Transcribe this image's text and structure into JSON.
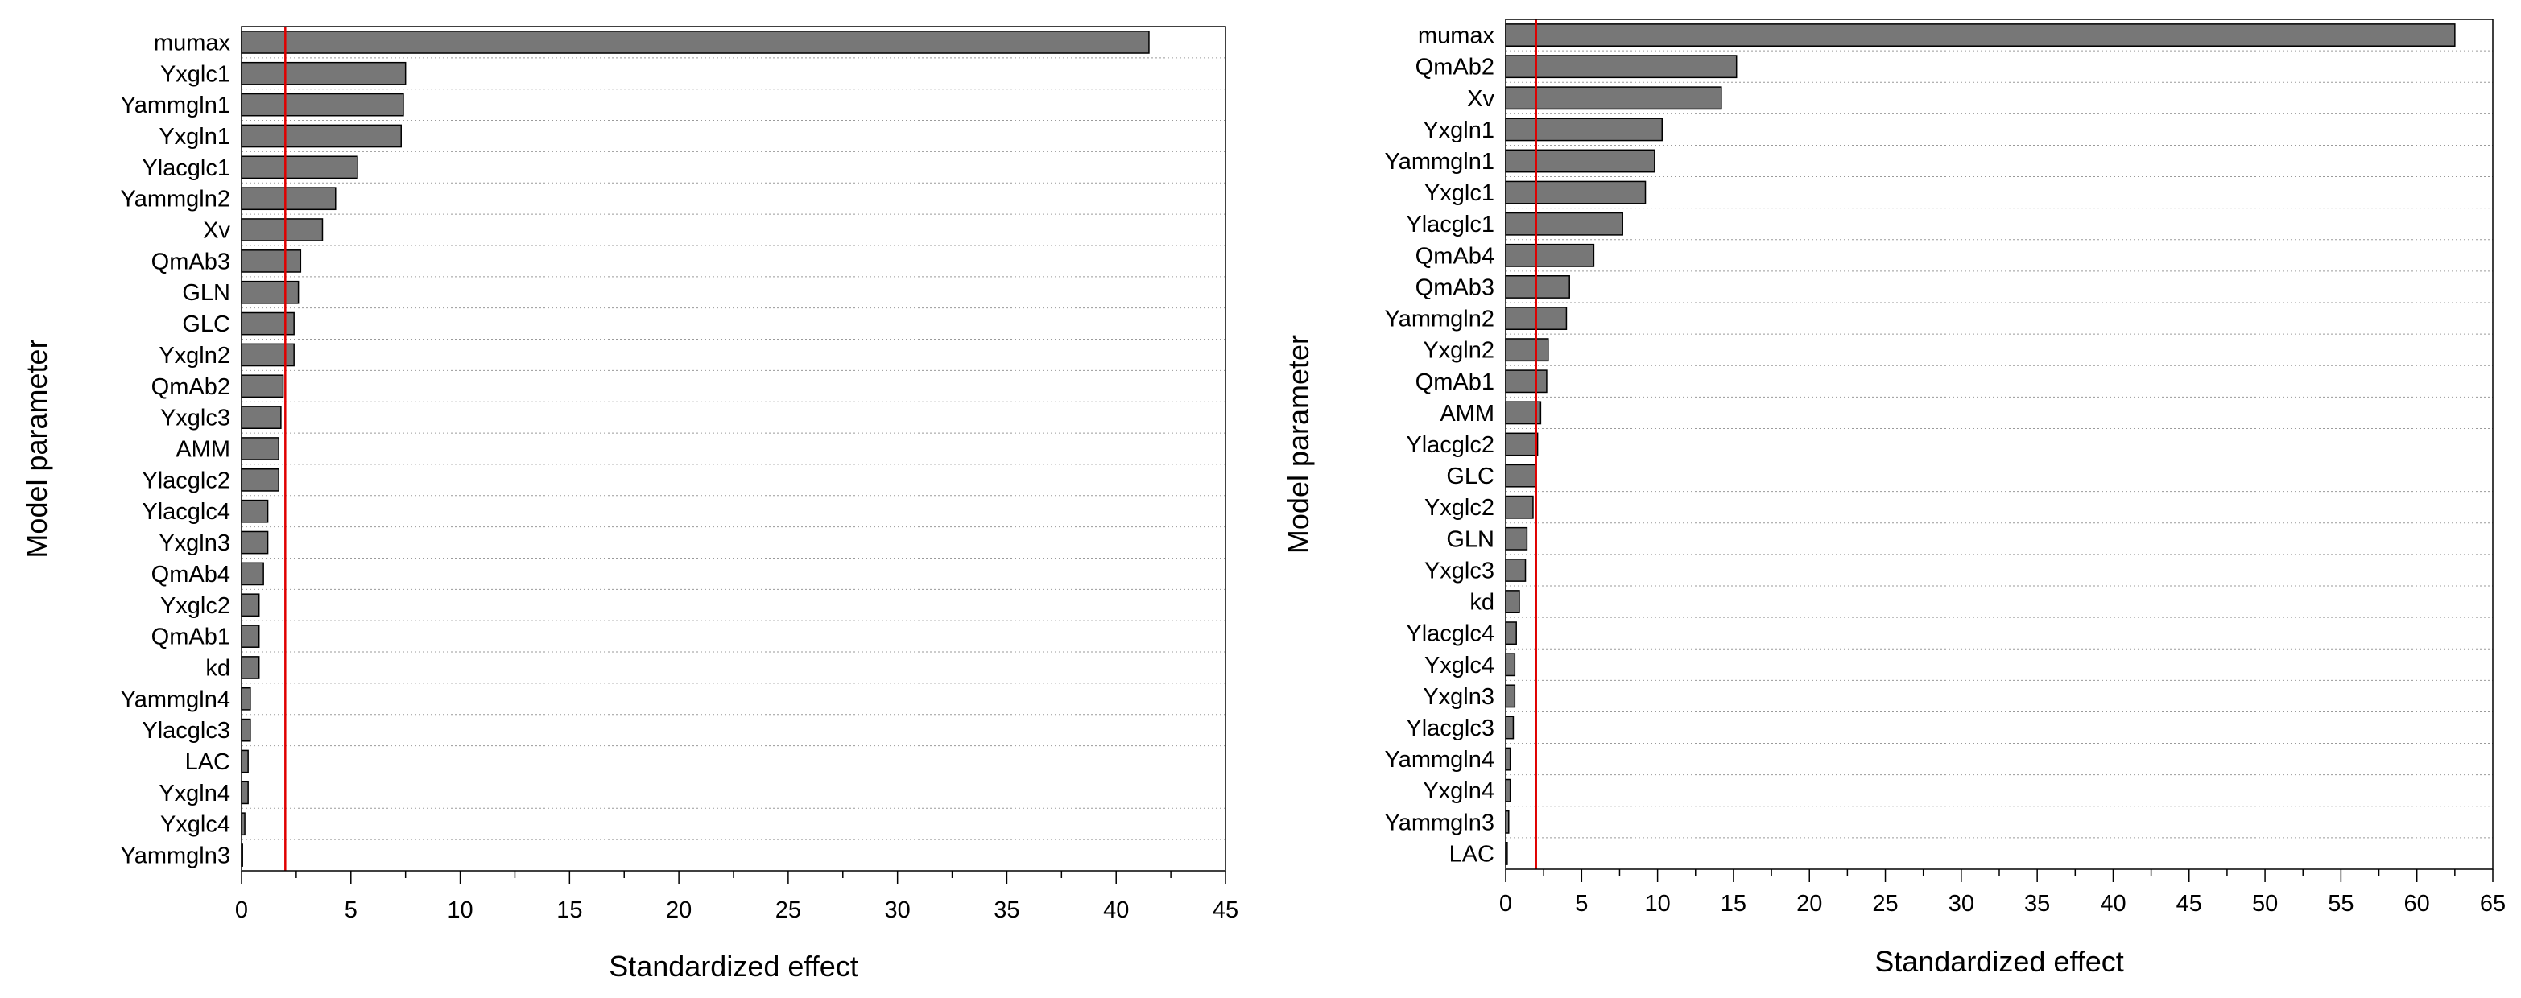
{
  "chart_data": [
    {
      "type": "bar",
      "orientation": "horizontal",
      "xlabel": "Standardized effect",
      "ylabel": "Model parameter",
      "xlim": [
        0,
        45
      ],
      "xticks": [
        0,
        5,
        10,
        15,
        20,
        25,
        30,
        35,
        40,
        45
      ],
      "reference_line": 2,
      "categories": [
        "mumax",
        "Yxglc1",
        "Yammgln1",
        "Yxgln1",
        "Ylacglc1",
        "Yammgln2",
        "Xv",
        "QmAb3",
        "GLN",
        "GLC",
        "Yxgln2",
        "QmAb2",
        "Yxglc3",
        "AMM",
        "Ylacglc2",
        "Ylacglc4",
        "Yxgln3",
        "QmAb4",
        "Yxglc2",
        "QmAb1",
        "kd",
        "Yammgln4",
        "Ylacglc3",
        "LAC",
        "Yxgln4",
        "Yxglc4",
        "Yammgln3"
      ],
      "values": [
        41.5,
        7.5,
        7.4,
        7.3,
        5.3,
        4.3,
        3.7,
        2.7,
        2.6,
        2.4,
        2.4,
        1.9,
        1.8,
        1.7,
        1.7,
        1.2,
        1.2,
        1.0,
        0.8,
        0.8,
        0.8,
        0.4,
        0.4,
        0.3,
        0.3,
        0.15,
        0.0
      ]
    },
    {
      "type": "bar",
      "orientation": "horizontal",
      "xlabel": "Standardized effect",
      "ylabel": "Model parameter",
      "xlim": [
        0,
        65
      ],
      "xticks": [
        0,
        5,
        10,
        15,
        20,
        25,
        30,
        35,
        40,
        45,
        50,
        55,
        60,
        65
      ],
      "reference_line": 2,
      "categories": [
        "mumax",
        "QmAb2",
        "Xv",
        "Yxgln1",
        "Yammgln1",
        "Yxglc1",
        "Ylacglc1",
        "QmAb4",
        "QmAb3",
        "Yammgln2",
        "Yxgln2",
        "QmAb1",
        "AMM",
        "Ylacglc2",
        "GLC",
        "Yxglc2",
        "GLN",
        "Yxglc3",
        "kd",
        "Ylacglc4",
        "Yxglc4",
        "Yxgln3",
        "Ylacglc3",
        "Yammgln4",
        "Yxgln4",
        "Yammgln3",
        "LAC"
      ],
      "values": [
        62.5,
        15.2,
        14.2,
        10.3,
        9.8,
        9.2,
        7.7,
        5.8,
        4.2,
        4.0,
        2.8,
        2.7,
        2.3,
        2.1,
        2.0,
        1.8,
        1.4,
        1.3,
        0.9,
        0.7,
        0.6,
        0.6,
        0.5,
        0.3,
        0.3,
        0.2,
        0.1
      ]
    }
  ]
}
